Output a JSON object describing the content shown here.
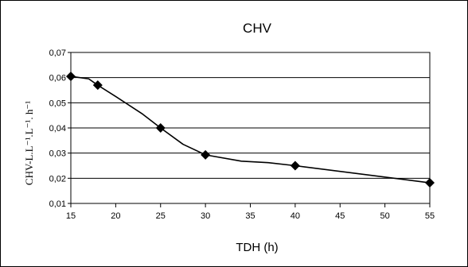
{
  "chart_data": {
    "type": "line",
    "title": "CHV",
    "xlabel": "TDH (h)",
    "ylabel": "CHV-L.L⁻¹.L⁻¹. h⁻¹",
    "x_ticks": [
      "15",
      "20",
      "25",
      "30",
      "35",
      "40",
      "45",
      "50",
      "55"
    ],
    "y_ticks": [
      "0,01",
      "0,02",
      "0,03",
      "0,04",
      "0,05",
      "0,06",
      "0,07"
    ],
    "xlim": [
      15,
      55
    ],
    "ylim": [
      0.01,
      0.07
    ],
    "grid": "horizontal",
    "series": [
      {
        "x": [
          15,
          18,
          25,
          30,
          40,
          55
        ],
        "y": [
          0.0605,
          0.057,
          0.04,
          0.0293,
          0.025,
          0.0182
        ],
        "marker": "diamond",
        "color": "#000000"
      }
    ],
    "smooth_curve": {
      "x": [
        15,
        17,
        18,
        20,
        23,
        25,
        27.5,
        30,
        34,
        37,
        40,
        55
      ],
      "y": [
        0.0605,
        0.0595,
        0.057,
        0.0525,
        0.0455,
        0.04,
        0.0335,
        0.0293,
        0.0268,
        0.0262,
        0.025,
        0.0182
      ]
    }
  }
}
